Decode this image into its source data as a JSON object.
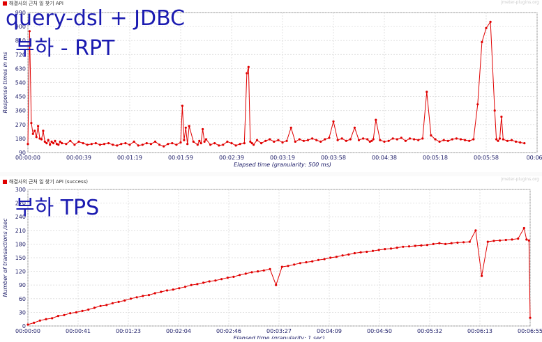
{
  "panels": {
    "rpt": {
      "legend": "해결사의 근처 일 찾기 API",
      "watermark": "jmeter-plugins.org",
      "overlay_title_1": "query-dsl + JDBC",
      "overlay_title_2": "부하 - RPT"
    },
    "tps": {
      "legend": "해결사의 근처 일 찾기 API (success)",
      "watermark": "jmeter-plugins.org",
      "overlay_title": "부하 TPS"
    }
  },
  "colors": {
    "series": "#e00000",
    "grid": "#d9d9d9",
    "axis_text": "#1a1a66",
    "overlay": "#1a1ab0"
  },
  "chart_data": [
    {
      "type": "line",
      "ylabel": "Response times in ms",
      "xlabel": "Elapsed time (granularity: 500 ms)",
      "xtick_labels": [
        "00:00:00",
        "00:00:39",
        "00:01:19",
        "00:01:59",
        "00:02:39",
        "00:03:19",
        "00:03:58",
        "00:04:38",
        "00:05:18",
        "00:05:58",
        "00:06:3"
      ],
      "ylim": [
        90,
        990
      ],
      "yticks": [
        90,
        180,
        270,
        360,
        450,
        540,
        630,
        720,
        810,
        900,
        990
      ],
      "grid": true,
      "legend_position": "top-left",
      "series": [
        {
          "name": "해결사의 근처 일 찾기 API",
          "x_seconds": [
            0,
            2,
            4,
            6,
            8,
            10,
            12,
            14,
            16,
            18,
            20,
            22,
            24,
            26,
            28,
            30,
            32,
            34,
            36,
            38,
            40,
            45,
            50,
            55,
            60,
            65,
            70,
            75,
            80,
            85,
            90,
            95,
            100,
            105,
            110,
            115,
            120,
            125,
            130,
            135,
            140,
            145,
            150,
            155,
            160,
            165,
            170,
            175,
            180,
            182,
            184,
            186,
            188,
            190,
            195,
            200,
            202,
            204,
            206,
            208,
            210,
            215,
            220,
            225,
            230,
            235,
            240,
            245,
            250,
            255,
            258,
            260,
            262,
            264,
            266,
            270,
            275,
            280,
            285,
            290,
            295,
            300,
            305,
            310,
            315,
            320,
            325,
            330,
            335,
            340,
            345,
            350,
            355,
            360,
            365,
            370,
            375,
            380,
            385,
            390,
            395,
            400,
            403,
            405,
            407,
            410,
            415,
            420,
            425,
            430,
            435,
            440,
            445,
            450,
            455,
            460,
            465,
            470,
            475,
            480,
            485,
            490,
            495,
            500,
            505,
            510,
            515,
            520,
            525,
            530,
            535,
            540,
            545,
            550,
            552,
            554,
            556,
            558,
            560,
            565,
            570,
            575,
            580,
            585
          ],
          "values": [
            145,
            870,
            280,
            210,
            230,
            190,
            260,
            180,
            175,
            230,
            160,
            150,
            170,
            140,
            160,
            150,
            165,
            145,
            140,
            160,
            150,
            145,
            165,
            140,
            160,
            150,
            140,
            145,
            150,
            140,
            145,
            150,
            140,
            135,
            145,
            150,
            140,
            160,
            135,
            140,
            150,
            145,
            160,
            140,
            130,
            145,
            150,
            140,
            155,
            390,
            170,
            250,
            145,
            260,
            160,
            140,
            165,
            150,
            240,
            160,
            175,
            140,
            150,
            135,
            140,
            160,
            150,
            135,
            145,
            150,
            600,
            640,
            160,
            150,
            140,
            170,
            150,
            165,
            175,
            160,
            170,
            155,
            165,
            250,
            160,
            175,
            165,
            170,
            180,
            170,
            160,
            175,
            185,
            290,
            170,
            180,
            165,
            175,
            250,
            170,
            180,
            175,
            160,
            165,
            175,
            300,
            170,
            160,
            165,
            180,
            175,
            185,
            165,
            180,
            175,
            170,
            180,
            480,
            200,
            175,
            160,
            170,
            165,
            175,
            180,
            175,
            170,
            165,
            175,
            400,
            800,
            890,
            930,
            360,
            175,
            165,
            180,
            320,
            175,
            165,
            170,
            160,
            155,
            150
          ]
        }
      ]
    },
    {
      "type": "line",
      "ylabel": "Number of transactions /sec",
      "xlabel": "Elapsed time (granularity: 1 sec)",
      "xtick_labels": [
        "00:00:00",
        "00:00:41",
        "00:01:23",
        "00:02:04",
        "00:02:46",
        "00:03:27",
        "00:04:09",
        "00:04:50",
        "00:05:32",
        "00:06:13",
        "00:06:55"
      ],
      "ylim": [
        0,
        300
      ],
      "yticks": [
        0,
        30,
        60,
        90,
        120,
        150,
        180,
        210,
        240,
        270,
        300
      ],
      "grid": true,
      "legend_position": "top-left",
      "series": [
        {
          "name": "해결사의 근처 일 찾기 API (success)",
          "x_seconds": [
            0,
            5,
            10,
            15,
            20,
            25,
            30,
            35,
            40,
            45,
            50,
            55,
            60,
            65,
            70,
            75,
            80,
            85,
            90,
            95,
            100,
            105,
            110,
            115,
            120,
            125,
            130,
            135,
            140,
            145,
            150,
            155,
            160,
            165,
            170,
            175,
            180,
            185,
            190,
            195,
            200,
            205,
            210,
            215,
            220,
            225,
            230,
            235,
            240,
            245,
            250,
            255,
            260,
            265,
            270,
            275,
            280,
            285,
            290,
            295,
            300,
            305,
            310,
            315,
            320,
            325,
            330,
            335,
            340,
            345,
            350,
            355,
            360,
            365,
            370,
            375,
            380,
            385,
            390,
            395,
            400,
            405,
            410,
            412,
            414,
            415
          ],
          "values": [
            3,
            7,
            12,
            15,
            17,
            22,
            24,
            28,
            30,
            33,
            36,
            40,
            44,
            46,
            50,
            53,
            56,
            60,
            63,
            66,
            68,
            72,
            75,
            78,
            80,
            83,
            86,
            90,
            92,
            95,
            98,
            100,
            103,
            106,
            108,
            112,
            115,
            118,
            120,
            122,
            125,
            90,
            130,
            132,
            135,
            138,
            140,
            142,
            145,
            147,
            150,
            152,
            155,
            157,
            160,
            162,
            163,
            165,
            167,
            169,
            170,
            172,
            174,
            175,
            176,
            177,
            178,
            180,
            182,
            180,
            182,
            183,
            184,
            185,
            210,
            110,
            185,
            187,
            188,
            189,
            190,
            192,
            215,
            190,
            188,
            18
          ]
        }
      ]
    }
  ]
}
